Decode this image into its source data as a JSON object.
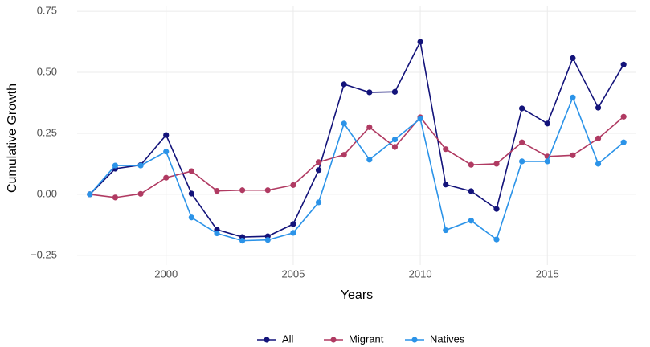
{
  "chart_data": {
    "type": "line",
    "x_label": "Years",
    "y_label": "Cumulative Growth",
    "x": [
      1997,
      1998,
      1999,
      2000,
      2001,
      2002,
      2003,
      2004,
      2005,
      2006,
      2007,
      2008,
      2009,
      2010,
      2011,
      2012,
      2013,
      2014,
      2015,
      2016,
      2017,
      2018
    ],
    "series": [
      {
        "name": "All",
        "color": "#13137a",
        "values": [
          0,
          0.105,
          0.12,
          0.243,
          0.003,
          -0.145,
          -0.175,
          -0.172,
          -0.122,
          0.099,
          0.451,
          0.418,
          0.42,
          0.625,
          0.04,
          0.013,
          -0.06,
          0.352,
          0.29,
          0.558,
          0.355,
          0.532
        ]
      },
      {
        "name": "Migrant",
        "color": "#b03a62",
        "values": [
          0,
          -0.013,
          0.002,
          0.068,
          0.095,
          0.014,
          0.017,
          0.017,
          0.038,
          0.132,
          0.162,
          0.275,
          0.194,
          0.316,
          0.185,
          0.121,
          0.125,
          0.213,
          0.155,
          0.16,
          0.229,
          0.318
        ]
      },
      {
        "name": "Natives",
        "color": "#2b93e8",
        "values": [
          0,
          0.118,
          0.118,
          0.175,
          -0.095,
          -0.16,
          -0.19,
          -0.187,
          -0.158,
          -0.033,
          0.29,
          0.142,
          0.225,
          0.31,
          -0.147,
          -0.108,
          -0.185,
          0.135,
          0.135,
          0.397,
          0.125,
          0.213
        ]
      }
    ],
    "xlim": [
      1996.5,
      2018.5
    ],
    "xticks": [
      2000,
      2005,
      2010,
      2015
    ],
    "ylim": [
      -0.29,
      0.77
    ],
    "yticks": [
      {
        "value": -0.25,
        "label": "−0.25"
      },
      {
        "value": 0,
        "label": "0.00"
      },
      {
        "value": 0.25,
        "label": "0.25"
      },
      {
        "value": 0.5,
        "label": "0.50"
      },
      {
        "value": 0.75,
        "label": "0.75"
      }
    ],
    "grid": true,
    "legend": "bottom"
  }
}
